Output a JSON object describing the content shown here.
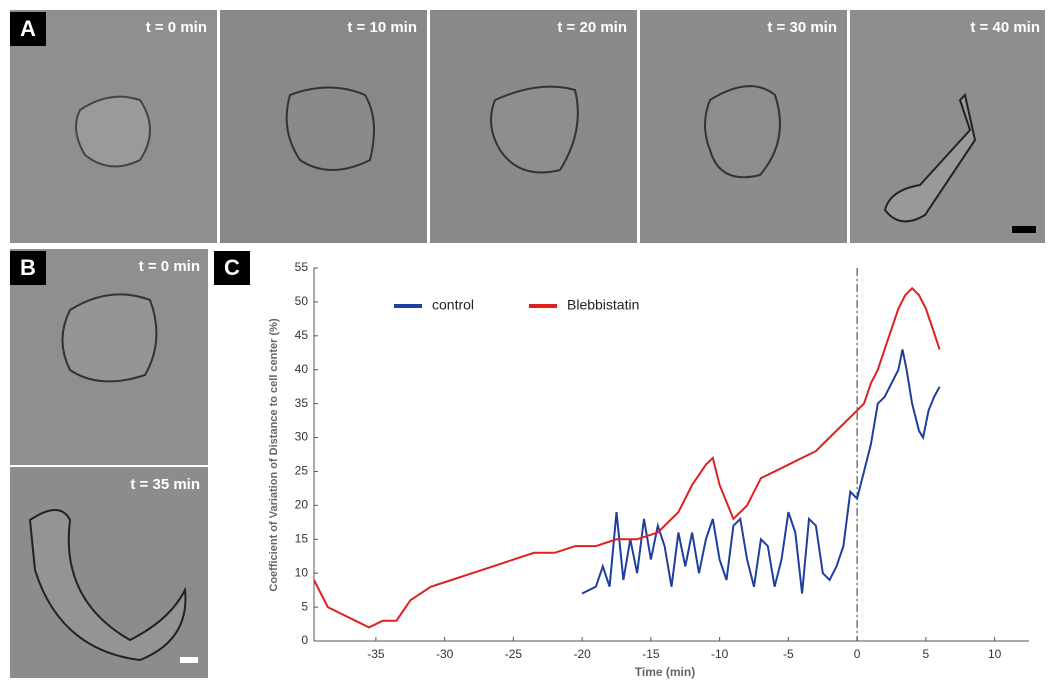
{
  "panel_a": {
    "label": "A",
    "times": [
      "t = 0 min",
      "t = 10 min",
      "t = 20 min",
      "t = 30 min",
      "t = 40 min"
    ]
  },
  "panel_b": {
    "label": "B",
    "times": [
      "t = 0 min",
      "t = 35 min"
    ]
  },
  "chart_data": {
    "type": "line",
    "label": "C",
    "xlabel": "Time (min)",
    "ylabel": "Coefficient of Variation of Distance to cell center (%)",
    "xlim": [
      -39.5,
      12.5
    ],
    "ylim": [
      0,
      55
    ],
    "xticks": [
      -35,
      -30,
      -25,
      -20,
      -15,
      -10,
      -5,
      0,
      5,
      10
    ],
    "yticks": [
      0,
      5,
      10,
      15,
      20,
      25,
      30,
      35,
      40,
      45,
      50,
      55
    ],
    "reference_line_x": 0,
    "legend": "upper left",
    "series": [
      {
        "name": "control",
        "color": "#1f3f9e",
        "x": [
          -20,
          -19,
          -18.5,
          -18,
          -17.5,
          -17,
          -16.5,
          -16,
          -15.5,
          -15,
          -14.5,
          -14,
          -13.5,
          -13,
          -12.5,
          -12,
          -11.5,
          -11,
          -10.5,
          -10,
          -9.5,
          -9,
          -8.5,
          -8,
          -7.5,
          -7,
          -6.5,
          -6,
          -5.5,
          -5,
          -4.5,
          -4,
          -3.5,
          -3,
          -2.5,
          -2,
          -1.5,
          -1,
          -0.5,
          0,
          0.5,
          1,
          1.5,
          2,
          2.5,
          3,
          3.3,
          3.6,
          4,
          4.5,
          4.8,
          5.2,
          5.6,
          6
        ],
        "values": [
          7,
          8,
          11,
          8,
          19,
          9,
          15,
          10,
          18,
          12,
          17,
          14,
          8,
          16,
          11,
          16,
          10,
          15,
          18,
          12,
          9,
          17,
          18,
          12,
          8,
          15,
          14,
          8,
          12,
          19,
          16,
          7,
          18,
          17,
          10,
          9,
          11,
          14,
          22,
          21,
          25,
          29,
          35,
          36,
          38,
          40,
          43,
          40,
          35,
          31,
          30,
          34,
          36,
          37.5
        ]
      },
      {
        "name": "Blebbistatin",
        "color": "#e02020",
        "x": [
          -39.5,
          -38.5,
          -37.5,
          -36.5,
          -35.5,
          -34.5,
          -33.5,
          -32.5,
          -31,
          -29.5,
          -28,
          -26.5,
          -25,
          -23.5,
          -22,
          -20.5,
          -19,
          -17.5,
          -16,
          -14.5,
          -13,
          -12,
          -11,
          -10.5,
          -10,
          -9,
          -8,
          -7,
          -6,
          -5,
          -4,
          -3,
          -2,
          -1,
          0,
          0.5,
          1,
          1.5,
          2,
          2.5,
          3,
          3.5,
          4,
          4.5,
          5,
          5.5,
          6
        ],
        "values": [
          9,
          5,
          4,
          3,
          2,
          3,
          3,
          6,
          8,
          9,
          10,
          11,
          12,
          13,
          13,
          14,
          14,
          15,
          15,
          16,
          19,
          23,
          26,
          27,
          23,
          18,
          20,
          24,
          25,
          26,
          27,
          28,
          30,
          32,
          34,
          35,
          38,
          40,
          43,
          46,
          49,
          51,
          52,
          51,
          49,
          46,
          43
        ]
      }
    ]
  }
}
